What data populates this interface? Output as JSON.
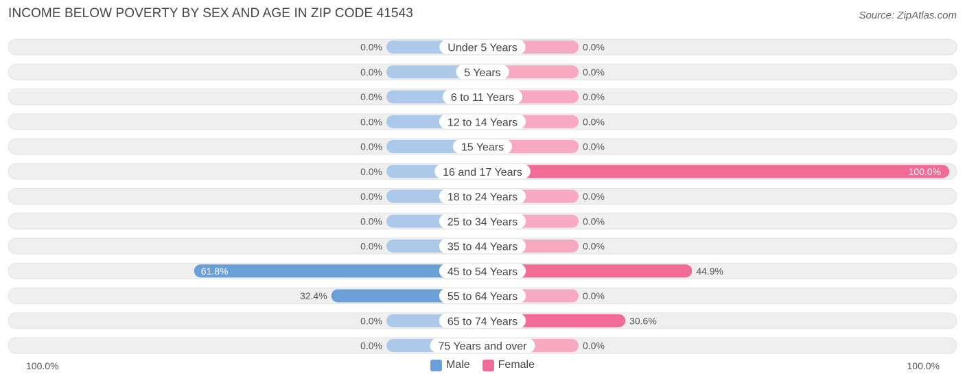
{
  "header": {
    "title": "INCOME BELOW POVERTY BY SEX AND AGE IN ZIP CODE 41543",
    "source": "Source: ZipAtlas.com"
  },
  "colors": {
    "male": "#6a9fd8",
    "male_light": "#adc9ea",
    "female": "#f06b96",
    "female_light": "#f7a9c2",
    "row_bg": "#efefef"
  },
  "axis": {
    "left_label": "100.0%",
    "right_label": "100.0%"
  },
  "legend": [
    {
      "name": "Male",
      "color": "#6a9fd8"
    },
    {
      "name": "Female",
      "color": "#f06b96"
    }
  ],
  "chart_data": {
    "type": "bar",
    "orientation": "horizontal-diverging",
    "title": "INCOME BELOW POVERTY BY SEX AND AGE IN ZIP CODE 41543",
    "categories": [
      "Under 5 Years",
      "5 Years",
      "6 to 11 Years",
      "12 to 14 Years",
      "15 Years",
      "16 and 17 Years",
      "18 to 24 Years",
      "25 to 34 Years",
      "35 to 44 Years",
      "45 to 54 Years",
      "55 to 64 Years",
      "65 to 74 Years",
      "75 Years and over"
    ],
    "series": [
      {
        "name": "Male",
        "values": [
          0,
          0,
          0,
          0,
          0,
          0,
          0,
          0,
          0,
          61.8,
          32.4,
          0,
          0
        ],
        "labels": [
          "0.0%",
          "0.0%",
          "0.0%",
          "0.0%",
          "0.0%",
          "0.0%",
          "0.0%",
          "0.0%",
          "0.0%",
          "61.8%",
          "32.4%",
          "0.0%",
          "0.0%"
        ]
      },
      {
        "name": "Female",
        "values": [
          0,
          0,
          0,
          0,
          0,
          100,
          0,
          0,
          0,
          44.9,
          0,
          30.6,
          0
        ],
        "labels": [
          "0.0%",
          "0.0%",
          "0.0%",
          "0.0%",
          "0.0%",
          "100.0%",
          "0.0%",
          "0.0%",
          "0.0%",
          "44.9%",
          "0.0%",
          "30.6%",
          "0.0%"
        ]
      }
    ],
    "xlim": [
      -100,
      100
    ],
    "legend_position": "bottom-center",
    "grid": false
  }
}
